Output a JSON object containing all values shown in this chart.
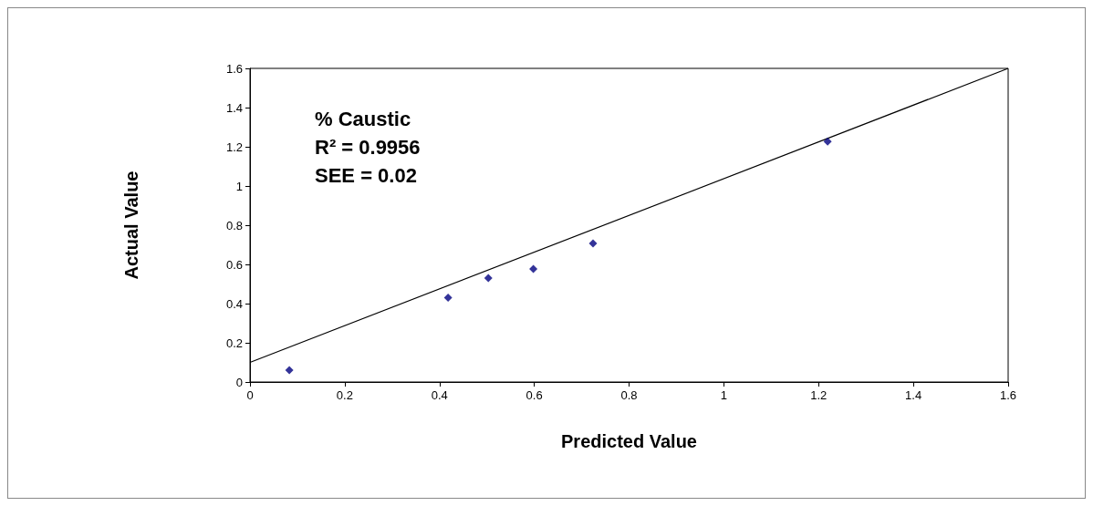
{
  "chart_data": {
    "type": "scatter",
    "xlabel": "Predicted Value",
    "ylabel": "Actual Value",
    "xlim": [
      0,
      1.6
    ],
    "xticks": [
      0,
      0.2,
      0.4,
      0.6,
      0.8,
      1,
      1.2,
      1.4,
      1.6
    ],
    "ylim": [
      0,
      1.6
    ],
    "yticks": [
      0,
      0.2,
      0.4,
      0.6,
      0.8,
      1,
      1.2,
      1.4,
      1.6
    ],
    "grid": false,
    "annotations": [
      "% Caustic",
      "R² = 0.9956",
      "SEE = 0.02"
    ],
    "series": [
      {
        "color": "#000080",
        "marker": "diamond",
        "x": [
          0.083,
          0.418,
          0.503,
          0.598,
          0.724,
          1.219
        ],
        "values": [
          0.06,
          0.43,
          0.53,
          0.577,
          0.707,
          1.227
        ]
      },
      {
        "type": "line",
        "marker": "none",
        "color": "#000000",
        "x": [
          0,
          1.6
        ],
        "values": [
          0.1,
          1.6
        ]
      }
    ]
  }
}
